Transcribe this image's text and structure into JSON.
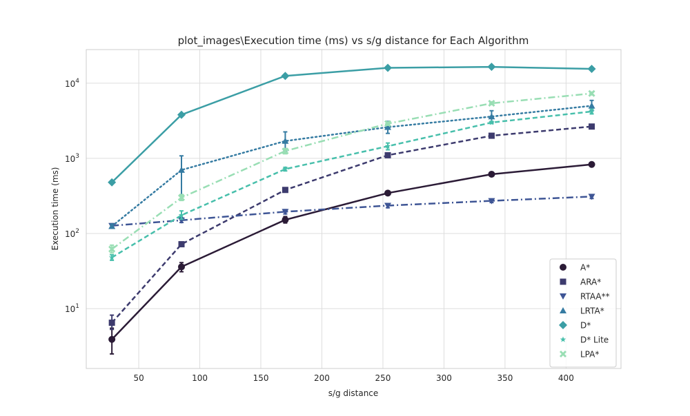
{
  "chart_data": {
    "type": "line",
    "title": "plot_images\\Execution time (ms) vs s/g distance for Each Algorithm",
    "xlabel": "s/g distance",
    "ylabel": "Execution time (ms)",
    "xlim": [
      7,
      445
    ],
    "ylim": [
      1.6,
      28000
    ],
    "yscale": "log",
    "grid": true,
    "legend_position": "lower-right",
    "x_ticks": [
      50,
      100,
      150,
      200,
      250,
      300,
      350,
      400
    ],
    "y_ticks": [
      {
        "value": 10,
        "base": "10",
        "exp": "1"
      },
      {
        "value": 100,
        "base": "10",
        "exp": "2"
      },
      {
        "value": 1000,
        "base": "10",
        "exp": "3"
      },
      {
        "value": 10000,
        "base": "10",
        "exp": "4"
      }
    ],
    "x": [
      28,
      85,
      170,
      254,
      339,
      421
    ],
    "series": [
      {
        "name": "A*",
        "color": "#2b1b36",
        "marker": "circle",
        "dash": "solid",
        "values": [
          3.9,
          36,
          152,
          345,
          615,
          830
        ],
        "err_low": [
          2.5,
          31,
          138,
          325,
          600,
          810
        ],
        "err_high": [
          5.5,
          41,
          168,
          365,
          635,
          850
        ]
      },
      {
        "name": "ARA*",
        "color": "#3d3b6e",
        "marker": "square",
        "dash": "dashed",
        "values": [
          6.5,
          72,
          380,
          1100,
          2000,
          2650
        ],
        "err_low": [
          5.3,
          67,
          355,
          1050,
          1950,
          2580
        ],
        "err_high": [
          8.2,
          77,
          405,
          1150,
          2060,
          2720
        ]
      },
      {
        "name": "RTAA**",
        "color": "#3e5595",
        "marker": "triangle-down",
        "dash": "dashdot",
        "values": [
          127,
          150,
          195,
          235,
          272,
          310
        ],
        "err_low": [
          120,
          140,
          182,
          220,
          258,
          292
        ],
        "err_high": [
          135,
          162,
          208,
          250,
          287,
          328
        ]
      },
      {
        "name": "LRTA*",
        "color": "#357ba2",
        "marker": "triangle-up",
        "dash": "dotted",
        "values": [
          125,
          700,
          1700,
          2600,
          3600,
          5000
        ],
        "err_low": [
          118,
          330,
          1250,
          2150,
          3000,
          4300
        ],
        "err_high": [
          133,
          1080,
          2250,
          3100,
          4300,
          5900
        ]
      },
      {
        "name": "D*",
        "color": "#3b9ea5",
        "marker": "diamond",
        "dash": "solid",
        "values": [
          480,
          3800,
          12500,
          16000,
          16500,
          15500
        ],
        "err_low": [
          470,
          3750,
          12300,
          15800,
          16300,
          15300
        ],
        "err_high": [
          490,
          3850,
          12700,
          16200,
          16700,
          15700
        ]
      },
      {
        "name": "D* Lite",
        "color": "#47bfab",
        "marker": "star",
        "dash": "dashed",
        "values": [
          48,
          175,
          720,
          1450,
          3000,
          4200
        ],
        "err_low": [
          44,
          155,
          680,
          1300,
          2900,
          3900
        ],
        "err_high": [
          52,
          200,
          760,
          1600,
          3100,
          4500
        ]
      },
      {
        "name": "LPA*",
        "color": "#99deb4",
        "marker": "x",
        "dash": "dashdot",
        "values": [
          62,
          300,
          1250,
          2900,
          5400,
          7300
        ],
        "err_low": [
          55,
          275,
          1150,
          2750,
          5200,
          7000
        ],
        "err_high": [
          70,
          330,
          1350,
          3050,
          5650,
          7600
        ]
      }
    ]
  }
}
